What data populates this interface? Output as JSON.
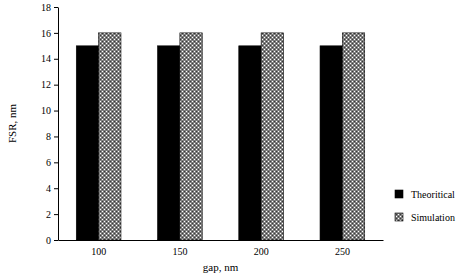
{
  "chart_data": {
    "type": "bar",
    "x_label": "gap, nm",
    "y_label": "FSR, nm",
    "categories": [
      "100",
      "150",
      "200",
      "250"
    ],
    "series": [
      {
        "name": "Theoritical",
        "color": "#000000",
        "values": [
          15,
          15,
          15,
          15
        ]
      },
      {
        "name": "Simulation",
        "color": "#7f7f7f",
        "values": [
          16,
          16,
          16,
          16
        ]
      }
    ],
    "ylim": [
      0,
      18
    ],
    "yticks": [
      0,
      2,
      4,
      6,
      8,
      10,
      12,
      14,
      16,
      18
    ],
    "grid": false,
    "legend": "right"
  }
}
